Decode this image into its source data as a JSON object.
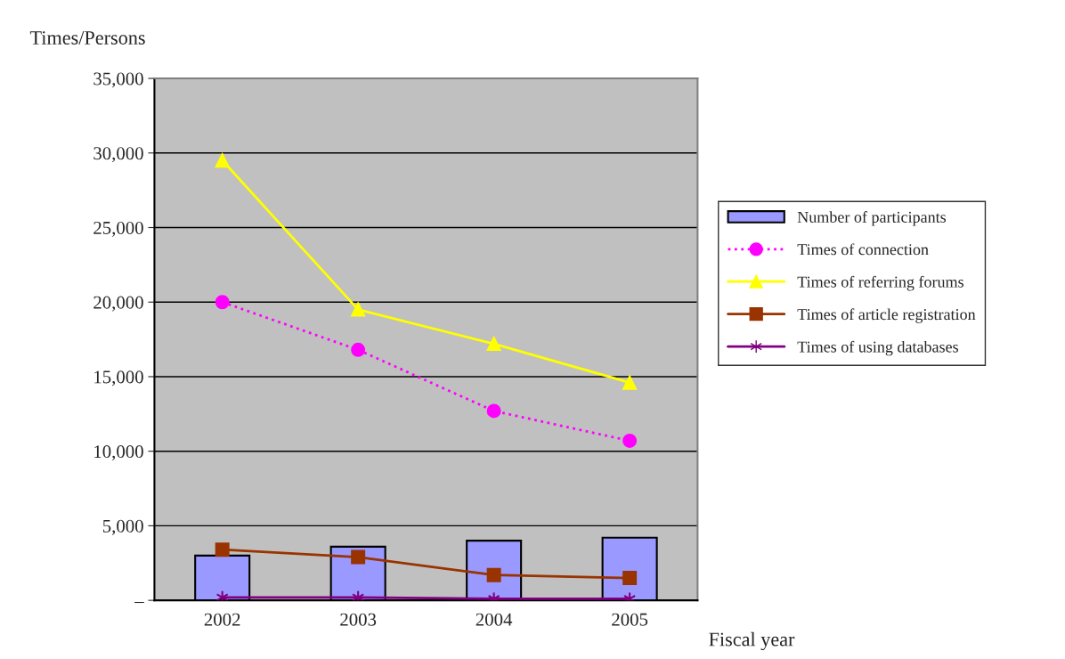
{
  "chart_data": {
    "type": "bar",
    "ylabel": "Times/Persons",
    "xlabel": "Fiscal year",
    "categories": [
      "2002",
      "2003",
      "2004",
      "2005"
    ],
    "series": [
      {
        "name": "Number of participants",
        "color": "#9999ff",
        "values": [
          3000,
          3600,
          4000,
          4200
        ]
      },
      {
        "name": "Times of connection",
        "type": "line",
        "color": "#ff00ff",
        "marker": "circle",
        "line_style": "dotted",
        "values": [
          20000,
          16800,
          12700,
          10700
        ]
      },
      {
        "name": "Times of referring forums",
        "type": "line",
        "color": "#ffff00",
        "marker": "triangle",
        "line_style": "solid",
        "values": [
          29500,
          19500,
          17200,
          14600
        ]
      },
      {
        "name": "Times of article registration",
        "type": "line",
        "color": "#993300",
        "marker": "square",
        "line_style": "solid",
        "values": [
          3400,
          2900,
          1700,
          1500
        ]
      },
      {
        "name": "Times of using databases",
        "type": "line",
        "color": "#800080",
        "marker": "cross",
        "line_style": "solid",
        "values": [
          200,
          200,
          100,
          100
        ]
      }
    ],
    "ylim": [
      0,
      35000
    ],
    "yticks": [
      {
        "value": 0,
        "label": "–"
      },
      {
        "value": 5000,
        "label": "5,000"
      },
      {
        "value": 10000,
        "label": "10,000"
      },
      {
        "value": 15000,
        "label": "15,000"
      },
      {
        "value": 20000,
        "label": "20,000"
      },
      {
        "value": 25000,
        "label": "25,000"
      },
      {
        "value": 30000,
        "label": "30,000"
      },
      {
        "value": 35000,
        "label": "35,000"
      }
    ],
    "grid": "y",
    "legend": "right"
  }
}
